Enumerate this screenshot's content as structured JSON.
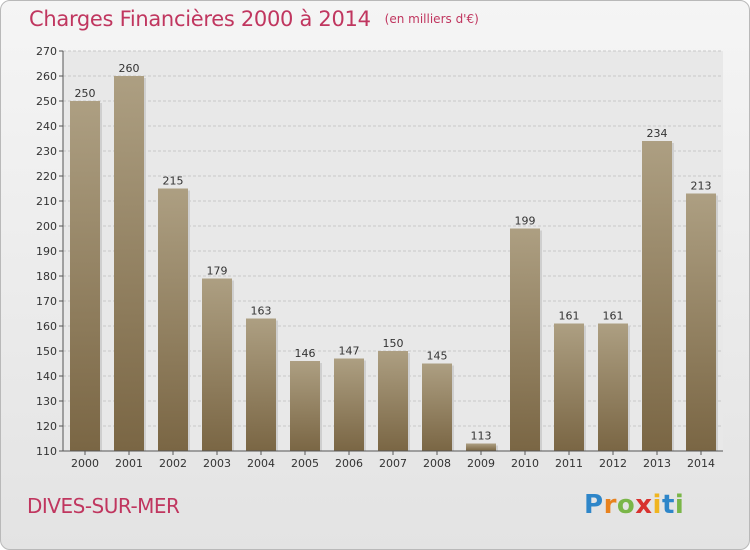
{
  "title": "Charges Financières 2000 à 2014",
  "subtitle": "(en milliers d'€)",
  "city": "DIVES-SUR-MER",
  "logo": {
    "letters": [
      "P",
      "r",
      "o",
      "x",
      "i",
      "t",
      "i"
    ],
    "colors": [
      "#2e86c9",
      "#e8821e",
      "#7ab648",
      "#d8322f",
      "#f0b51f",
      "#2e86c9",
      "#7ab648"
    ]
  },
  "colors": {
    "title": "#c0365f",
    "bar_top": "#ad9f82",
    "bar_bottom": "#7a6644"
  },
  "chart_data": {
    "type": "bar",
    "categories": [
      "2000",
      "2001",
      "2002",
      "2003",
      "2004",
      "2005",
      "2006",
      "2007",
      "2008",
      "2009",
      "2010",
      "2011",
      "2012",
      "2013",
      "2014"
    ],
    "values": [
      250,
      260,
      215,
      179,
      163,
      146,
      147,
      150,
      145,
      113,
      199,
      161,
      161,
      234,
      213
    ],
    "ylim": [
      110,
      270
    ],
    "yticks": [
      110,
      120,
      130,
      140,
      150,
      160,
      170,
      180,
      190,
      200,
      210,
      220,
      230,
      240,
      250,
      260,
      270
    ],
    "grid": true
  }
}
